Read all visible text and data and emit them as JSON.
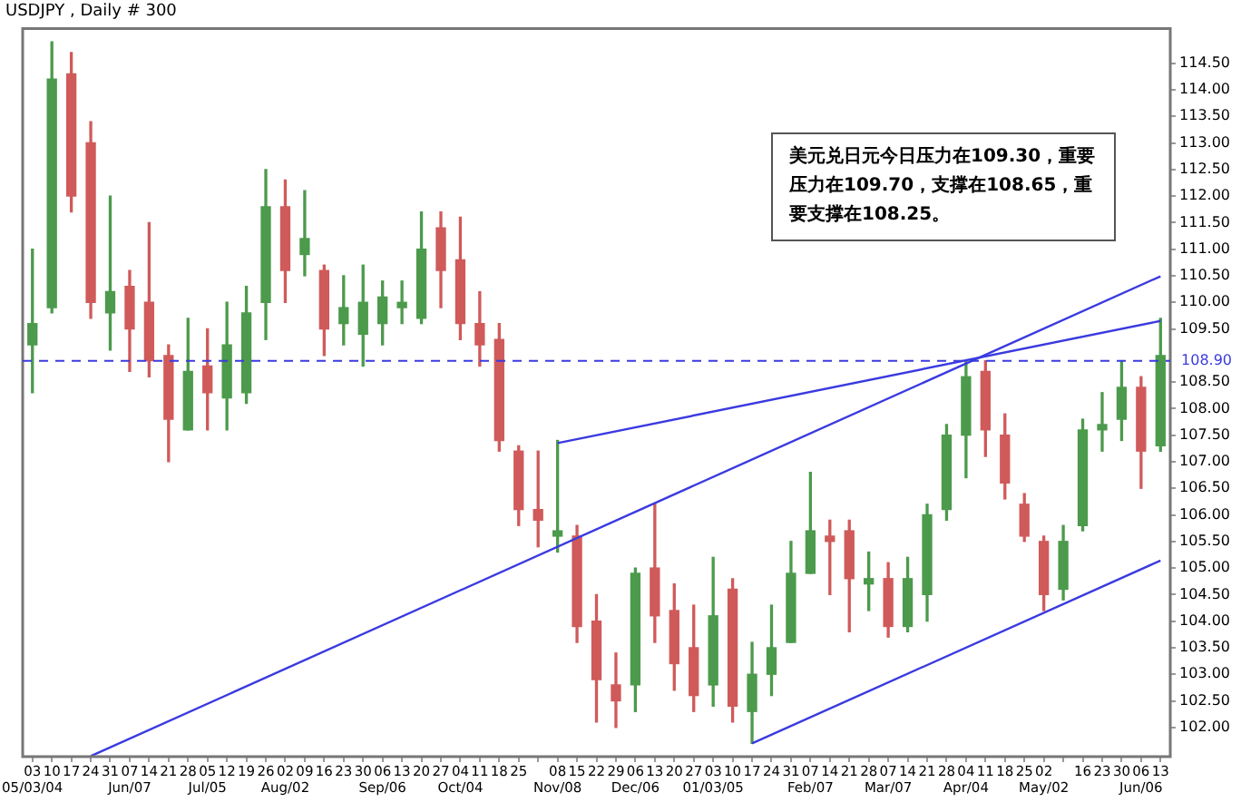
{
  "chart_data": {
    "type": "candlestick",
    "title": "USDJPY , Daily # 300",
    "categories": [
      "03\n05/03/04",
      "10",
      "17",
      "24",
      "31",
      "07\nJun/07",
      "14",
      "21",
      "28",
      "05\nJul/05",
      "12",
      "19",
      "26",
      "02\nAug/02",
      "09",
      "16",
      "23",
      "30",
      "06\nSep/06",
      "13",
      "20",
      "27",
      "04\nOct/04",
      "11",
      "18",
      "25",
      null,
      "08\nNov/08",
      "15",
      "22",
      "29",
      "06\nDec/06",
      "13",
      "20",
      "27",
      "03\n01/03/05",
      "10",
      "17",
      "24",
      "31",
      "07\nFeb/07",
      "14",
      "21",
      "28",
      "07\nMar/07",
      "14",
      "21",
      "28",
      "04\nApr/04",
      "11",
      "18",
      "25",
      "02\nMay/02",
      null,
      "16",
      "23",
      "30",
      "06\nJun/06",
      "13"
    ],
    "ohlc": [
      [
        109.2,
        111.0,
        108.3,
        109.6
      ],
      [
        109.9,
        114.9,
        109.8,
        114.2
      ],
      [
        114.3,
        114.7,
        111.7,
        112.0
      ],
      [
        113.0,
        113.4,
        109.7,
        110.0
      ],
      [
        109.8,
        112.0,
        109.1,
        110.2
      ],
      [
        110.3,
        110.6,
        108.7,
        109.5
      ],
      [
        110.0,
        111.5,
        108.6,
        108.9
      ],
      [
        109.0,
        109.2,
        107.0,
        107.8
      ],
      [
        107.6,
        109.7,
        107.6,
        108.7
      ],
      [
        108.8,
        109.5,
        107.6,
        108.3
      ],
      [
        108.2,
        110.0,
        107.6,
        109.2
      ],
      [
        108.3,
        110.3,
        108.1,
        109.8
      ],
      [
        110.0,
        112.5,
        109.3,
        111.8
      ],
      [
        111.8,
        112.3,
        110.0,
        110.6
      ],
      [
        110.9,
        112.1,
        110.5,
        111.2
      ],
      [
        110.6,
        110.7,
        109.0,
        109.5
      ],
      [
        109.6,
        110.5,
        109.2,
        109.9
      ],
      [
        109.4,
        110.7,
        108.8,
        110.0
      ],
      [
        109.6,
        110.4,
        109.2,
        110.1
      ],
      [
        109.9,
        110.4,
        109.6,
        110.0
      ],
      [
        109.7,
        111.7,
        109.6,
        111.0
      ],
      [
        111.4,
        111.7,
        109.9,
        110.6
      ],
      [
        110.8,
        111.6,
        109.3,
        109.6
      ],
      [
        109.6,
        110.2,
        108.8,
        109.2
      ],
      [
        109.3,
        109.6,
        107.2,
        107.4
      ],
      [
        107.2,
        107.3,
        105.8,
        106.1
      ],
      [
        106.1,
        107.2,
        105.4,
        105.9
      ],
      [
        105.6,
        107.4,
        105.3,
        105.7
      ],
      [
        105.6,
        105.8,
        103.6,
        103.9
      ],
      [
        104.0,
        104.5,
        102.1,
        102.9
      ],
      [
        102.8,
        103.4,
        102.0,
        102.5
      ],
      [
        102.8,
        105.0,
        102.3,
        104.9
      ],
      [
        105.0,
        106.2,
        103.6,
        104.1
      ],
      [
        104.2,
        104.7,
        102.7,
        103.2
      ],
      [
        103.5,
        104.3,
        102.3,
        102.6
      ],
      [
        102.8,
        105.2,
        102.4,
        104.1
      ],
      [
        104.6,
        104.8,
        102.1,
        102.4
      ],
      [
        102.3,
        103.6,
        101.7,
        103.0
      ],
      [
        103.0,
        104.3,
        102.6,
        103.5
      ],
      [
        103.6,
        105.5,
        103.6,
        104.9
      ],
      [
        104.9,
        106.8,
        104.9,
        105.7
      ],
      [
        105.6,
        105.9,
        104.5,
        105.5
      ],
      [
        105.7,
        105.9,
        103.8,
        104.8
      ],
      [
        104.7,
        105.3,
        104.2,
        104.8
      ],
      [
        104.8,
        105.1,
        103.7,
        103.9
      ],
      [
        103.9,
        105.2,
        103.8,
        104.8
      ],
      [
        104.5,
        106.2,
        104.0,
        106.0
      ],
      [
        106.1,
        107.7,
        105.9,
        107.5
      ],
      [
        107.5,
        108.9,
        106.7,
        108.6
      ],
      [
        108.7,
        108.9,
        107.1,
        107.6
      ],
      [
        107.5,
        107.9,
        106.3,
        106.6
      ],
      [
        106.2,
        106.4,
        105.5,
        105.6
      ],
      [
        105.5,
        105.6,
        104.2,
        104.5
      ],
      [
        104.6,
        105.8,
        104.4,
        105.5
      ],
      [
        105.8,
        107.8,
        105.7,
        107.6
      ],
      [
        107.6,
        108.3,
        107.2,
        107.7
      ],
      [
        107.8,
        108.9,
        107.4,
        108.4
      ],
      [
        108.4,
        108.6,
        106.5,
        107.2
      ],
      [
        107.3,
        109.7,
        107.2,
        109.0
      ]
    ],
    "colors": [
      "#4c9a4c",
      "#4c9a4c",
      "#d05a5a",
      "#d05a5a",
      "#4c9a4c",
      "#d05a5a",
      "#d05a5a",
      "#d05a5a",
      "#4c9a4c",
      "#d05a5a",
      "#4c9a4c",
      "#4c9a4c",
      "#4c9a4c",
      "#d05a5a",
      "#4c9a4c",
      "#d05a5a",
      "#4c9a4c",
      "#4c9a4c",
      "#4c9a4c",
      "#4c9a4c",
      "#4c9a4c",
      "#d05a5a",
      "#d05a5a",
      "#d05a5a",
      "#d05a5a",
      "#d05a5a",
      "#d05a5a",
      "#4c9a4c",
      "#d05a5a",
      "#d05a5a",
      "#d05a5a",
      "#4c9a4c",
      "#d05a5a",
      "#d05a5a",
      "#d05a5a",
      "#4c9a4c",
      "#d05a5a",
      "#4c9a4c",
      "#4c9a4c",
      "#4c9a4c",
      "#4c9a4c",
      "#d05a5a",
      "#d05a5a",
      "#4c9a4c",
      "#d05a5a",
      "#4c9a4c",
      "#4c9a4c",
      "#4c9a4c",
      "#4c9a4c",
      "#d05a5a",
      "#d05a5a",
      "#d05a5a",
      "#d05a5a",
      "#4c9a4c",
      "#4c9a4c",
      "#4c9a4c",
      "#4c9a4c",
      "#d05a5a",
      "#4c9a4c"
    ],
    "series": [
      {
        "type": "line",
        "color": "#3a3ae0",
        "values": [
          null,
          null,
          null,
          101.46,
          null,
          null,
          null,
          null,
          null,
          null,
          null,
          null,
          null,
          null,
          null,
          null,
          null,
          null,
          null,
          null,
          null,
          null,
          null,
          null,
          null,
          null,
          null,
          null,
          null,
          null,
          null,
          null,
          null,
          null,
          null,
          null,
          null,
          null,
          null,
          null,
          null,
          null,
          null,
          null,
          null,
          null,
          null,
          null,
          null,
          null,
          null,
          null,
          null,
          null,
          null,
          null,
          null,
          null,
          110.49
        ]
      },
      {
        "type": "line",
        "color": "#3a3ae0",
        "values": [
          null,
          null,
          null,
          null,
          null,
          null,
          null,
          null,
          null,
          null,
          null,
          null,
          null,
          null,
          null,
          null,
          null,
          null,
          null,
          null,
          null,
          null,
          null,
          null,
          null,
          null,
          null,
          107.35,
          null,
          null,
          null,
          null,
          null,
          null,
          null,
          null,
          null,
          null,
          null,
          null,
          null,
          null,
          null,
          null,
          null,
          null,
          null,
          null,
          null,
          null,
          null,
          null,
          null,
          null,
          null,
          null,
          null,
          null,
          109.65
        ]
      },
      {
        "type": "line",
        "color": "#3a3ae0",
        "values": [
          null,
          null,
          null,
          null,
          null,
          null,
          null,
          null,
          null,
          null,
          null,
          null,
          null,
          null,
          null,
          null,
          null,
          null,
          null,
          null,
          null,
          null,
          null,
          null,
          null,
          null,
          null,
          null,
          null,
          null,
          null,
          null,
          null,
          null,
          null,
          null,
          null,
          101.7,
          null,
          null,
          null,
          null,
          null,
          null,
          null,
          null,
          null,
          null,
          null,
          null,
          null,
          null,
          null,
          null,
          null,
          null,
          null,
          null,
          105.14
        ]
      }
    ],
    "ylim": [
      101.45,
      115.15
    ],
    "yticks": [
      {
        "value": 102,
        "label": "102.00"
      },
      {
        "value": 102.5,
        "label": "102.50"
      },
      {
        "value": 103,
        "label": "103.00"
      },
      {
        "value": 103.5,
        "label": "103.50"
      },
      {
        "value": 104,
        "label": "104.00"
      },
      {
        "value": 104.5,
        "label": "104.50"
      },
      {
        "value": 105,
        "label": "105.00"
      },
      {
        "value": 105.5,
        "label": "105.50"
      },
      {
        "value": 106,
        "label": "106.00"
      },
      {
        "value": 106.5,
        "label": "106.50"
      },
      {
        "value": 107,
        "label": "107.00"
      },
      {
        "value": 107.5,
        "label": "107.50"
      },
      {
        "value": 108,
        "label": "108.00"
      },
      {
        "value": 108.5,
        "label": "108.50"
      },
      {
        "value": 109.5,
        "label": "109.50"
      },
      {
        "value": 110,
        "label": "110.00"
      },
      {
        "value": 110.5,
        "label": "110.50"
      },
      {
        "value": 111,
        "label": "111.00"
      },
      {
        "value": 111.5,
        "label": "111.50"
      },
      {
        "value": 112,
        "label": "112.00"
      },
      {
        "value": 112.5,
        "label": "112.50"
      },
      {
        "value": 113,
        "label": "113.00"
      },
      {
        "value": 113.5,
        "label": "113.50"
      },
      {
        "value": 114,
        "label": "114.00"
      },
      {
        "value": 114.5,
        "label": "114.50"
      }
    ],
    "ref_lines": [
      {
        "axis": "y",
        "value": 108.9,
        "label": "108.90",
        "color": "#3a3ae0",
        "line_style": "dashed"
      }
    ],
    "annotations": [
      "美元兑日元今日压力在109.30，重要压力在109.70，支撑在108.65，重要支撑在108.25。"
    ]
  }
}
